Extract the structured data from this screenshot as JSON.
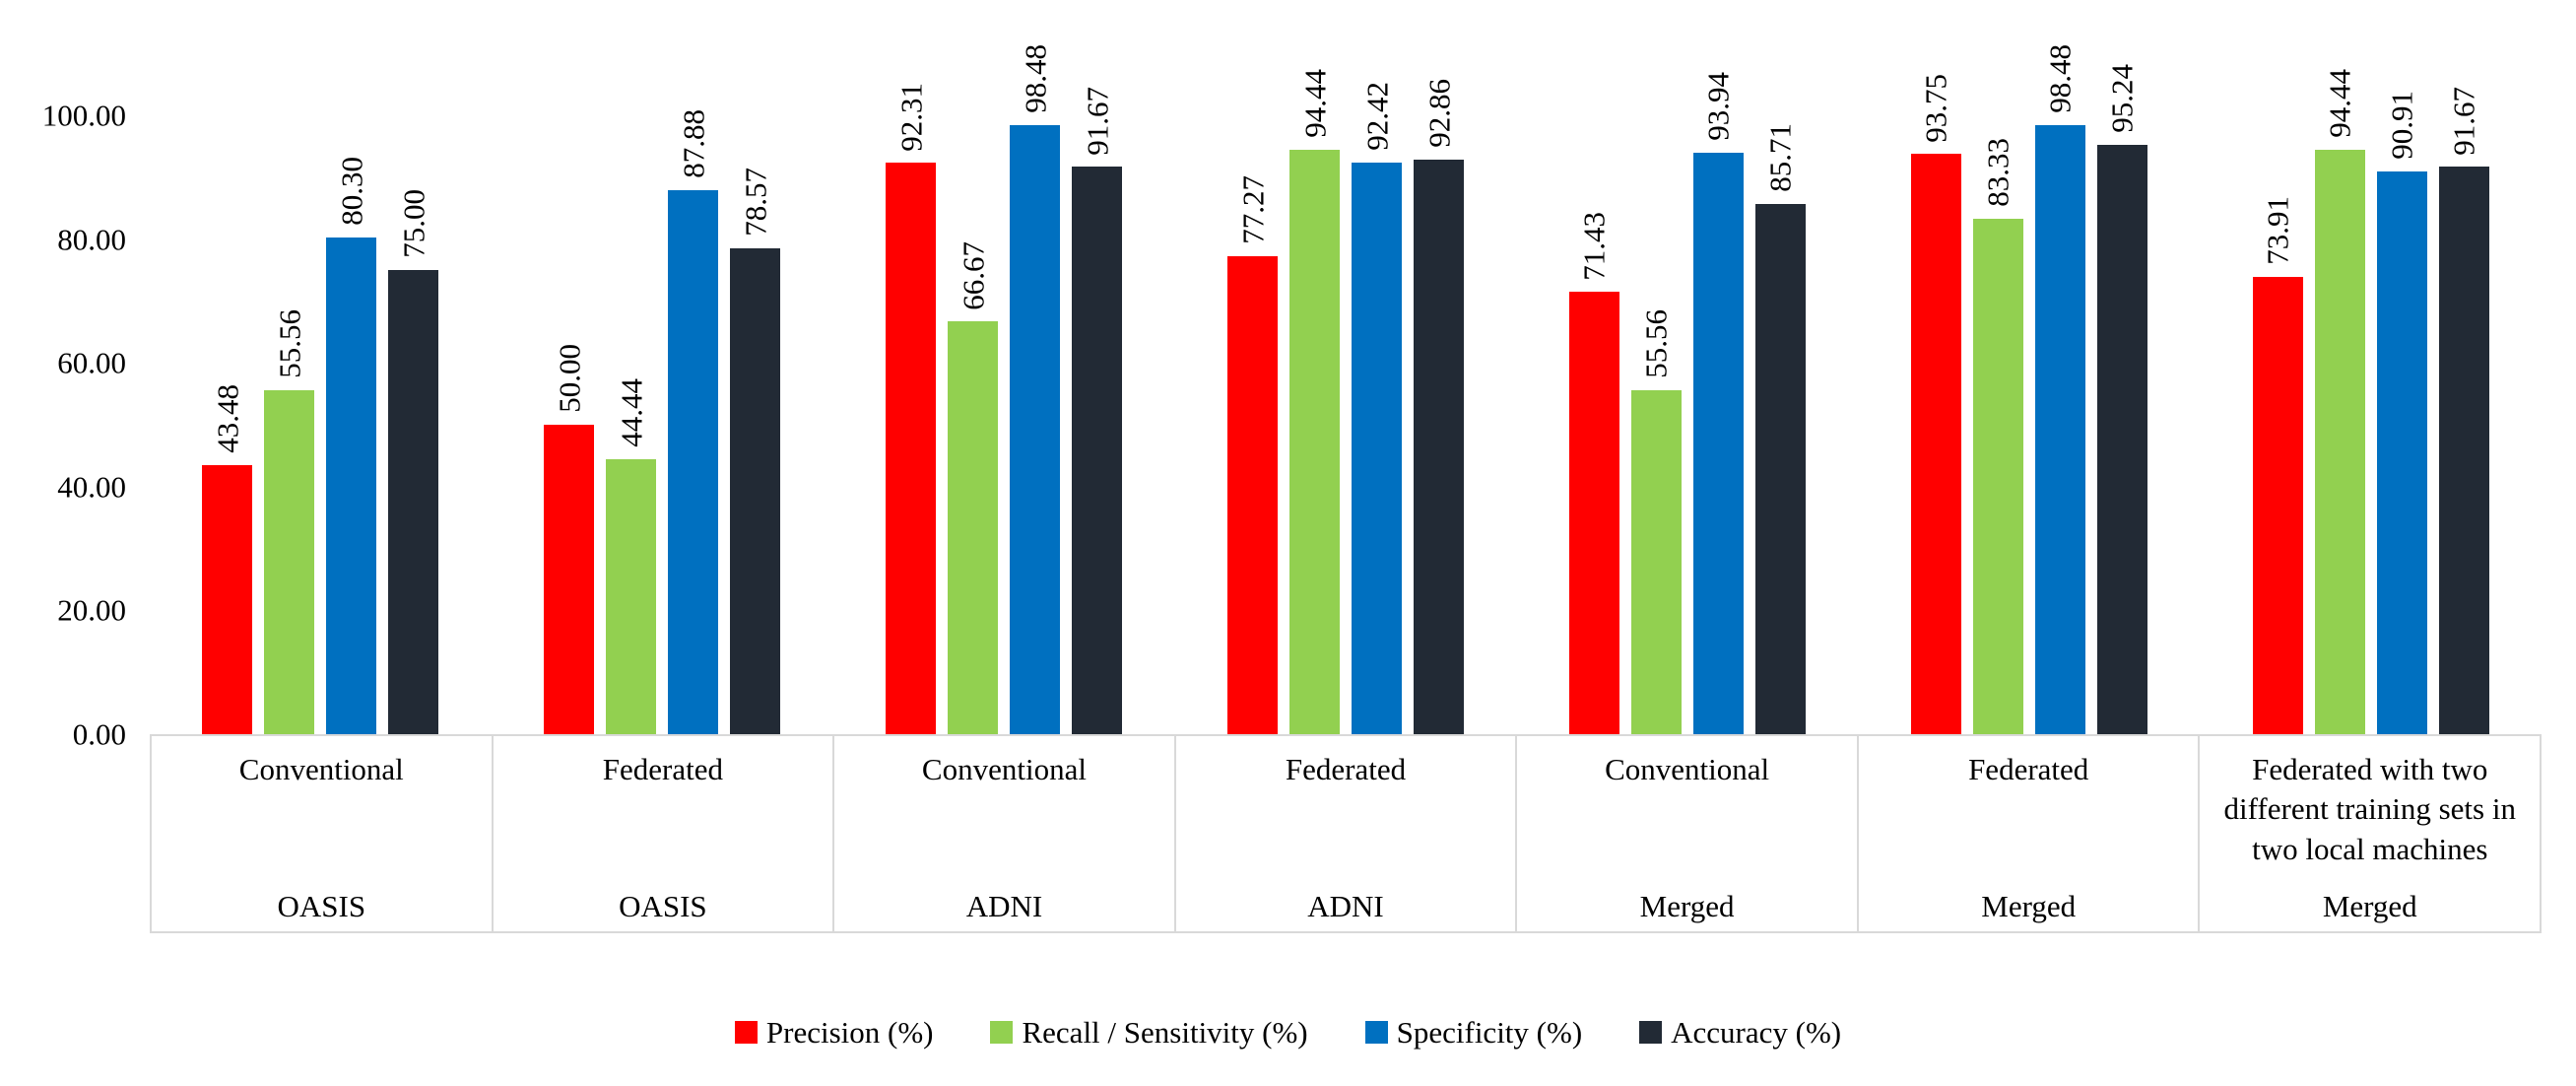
{
  "chart_data": {
    "type": "bar",
    "title": "",
    "xlabel": "",
    "ylabel": "",
    "ylim": [
      0,
      100
    ],
    "grid": false,
    "legend_position": "bottom",
    "y_ticks": [
      {
        "value": 0,
        "label": "0.00"
      },
      {
        "value": 20,
        "label": "20.00"
      },
      {
        "value": 40,
        "label": "40.00"
      },
      {
        "value": 60,
        "label": "60.00"
      },
      {
        "value": 80,
        "label": "80.00"
      },
      {
        "value": 100,
        "label": "100.00"
      }
    ],
    "value_label_decimals": 2,
    "series": [
      {
        "name": "Precision (%)",
        "color": "#FF0000",
        "values": [
          43.48,
          50.0,
          92.31,
          77.27,
          71.43,
          93.75,
          73.91
        ]
      },
      {
        "name": "Recall / Sensitivity (%)",
        "color": "#92D050",
        "values": [
          55.56,
          44.44,
          66.67,
          94.44,
          55.56,
          83.33,
          94.44
        ]
      },
      {
        "name": "Specificity (%)",
        "color": "#0070C0",
        "values": [
          80.3,
          87.88,
          98.48,
          92.42,
          93.94,
          98.48,
          90.91
        ]
      },
      {
        "name": "Accuracy (%)",
        "color": "#222A35",
        "values": [
          75.0,
          78.57,
          91.67,
          92.86,
          85.71,
          95.24,
          91.67
        ]
      }
    ],
    "groups": [
      {
        "method": "Conventional",
        "dataset": "OASIS"
      },
      {
        "method": "Federated",
        "dataset": "OASIS"
      },
      {
        "method": "Conventional",
        "dataset": "ADNI"
      },
      {
        "method": "Federated",
        "dataset": "ADNI"
      },
      {
        "method": "Conventional",
        "dataset": "Merged"
      },
      {
        "method": "Federated",
        "dataset": "Merged"
      },
      {
        "method": "Federated with two different training sets in two local machines",
        "dataset": "Merged"
      }
    ]
  }
}
